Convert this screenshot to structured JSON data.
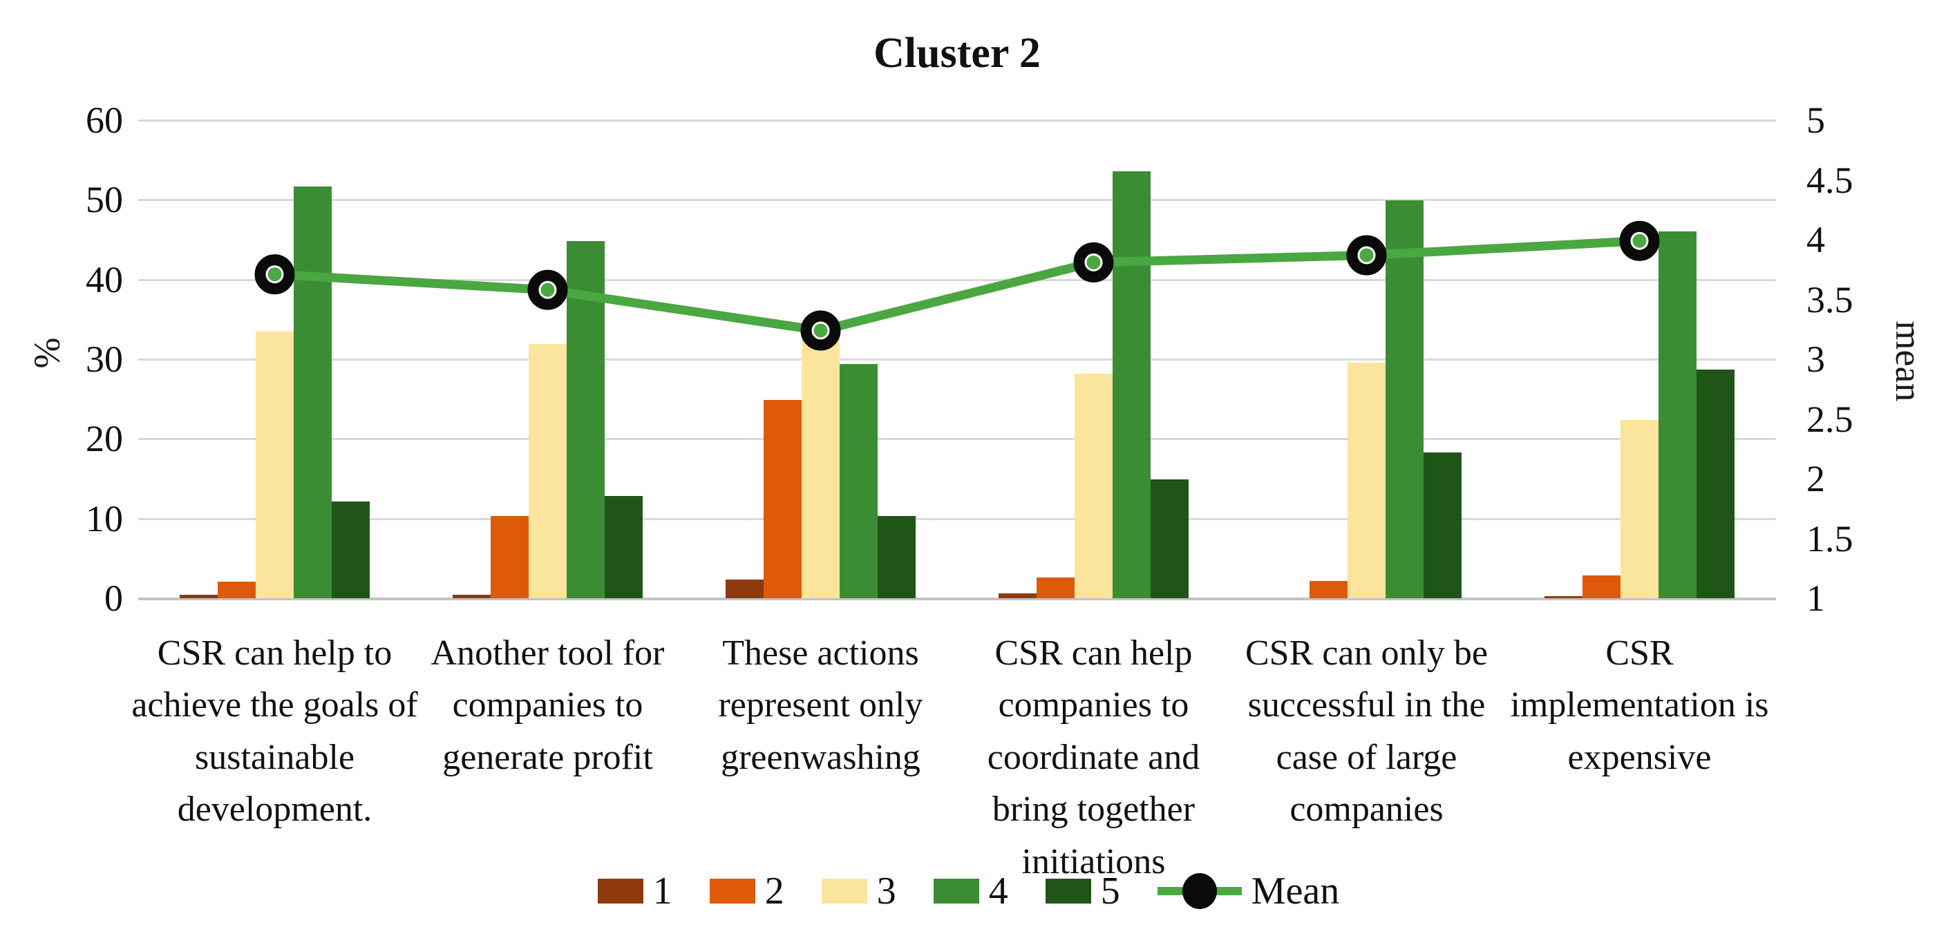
{
  "title": "Cluster 2",
  "chart_data": {
    "type": "bar+line",
    "title": "Cluster 2",
    "ylabel": "%",
    "y2label": "mean",
    "ylim": [
      0,
      60
    ],
    "y_ticks": [
      0,
      10,
      20,
      30,
      40,
      50,
      60
    ],
    "y2lim": [
      1,
      5
    ],
    "y2_ticks": [
      1,
      1.5,
      2,
      2.5,
      3,
      3.5,
      4,
      4.5,
      5
    ],
    "grid": true,
    "legend_position": "bottom",
    "categories": [
      "CSR can help to achieve the goals of sustainable development.",
      "Another tool for companies to generate profit",
      "These actions represent only greenwashing",
      "CSR can help companies to coordinate and bring together initiations",
      "CSR can only be successful in the case of large companies",
      "CSR implementation is expensive"
    ],
    "series": [
      {
        "name": "1",
        "color": "#8E3A0E",
        "values": [
          0.4,
          0.4,
          2.3,
          0.6,
          0,
          0.3
        ]
      },
      {
        "name": "2",
        "color": "#DE5A0A",
        "values": [
          2.1,
          10.3,
          24.9,
          2.6,
          2.2,
          2.9
        ]
      },
      {
        "name": "3",
        "color": "#FBE49C",
        "values": [
          33.5,
          31.9,
          32.7,
          28.2,
          29.6,
          22.4
        ]
      },
      {
        "name": "4",
        "color": "#3B8D33",
        "values": [
          51.7,
          44.8,
          29.4,
          53.6,
          49.9,
          46.0
        ]
      },
      {
        "name": "5",
        "color": "#1F5617",
        "values": [
          12.1,
          12.8,
          10.3,
          14.9,
          18.3,
          28.7
        ]
      }
    ],
    "mean_series": {
      "name": "Mean",
      "color": "#4AA742",
      "marker_color": "#0a0a0a",
      "values": [
        3.71,
        3.58,
        3.24,
        3.81,
        3.87,
        3.99
      ]
    }
  },
  "colors": {
    "grid": "#d9d9d9",
    "axis_line": "#c3c3c3",
    "text": "#111111"
  }
}
